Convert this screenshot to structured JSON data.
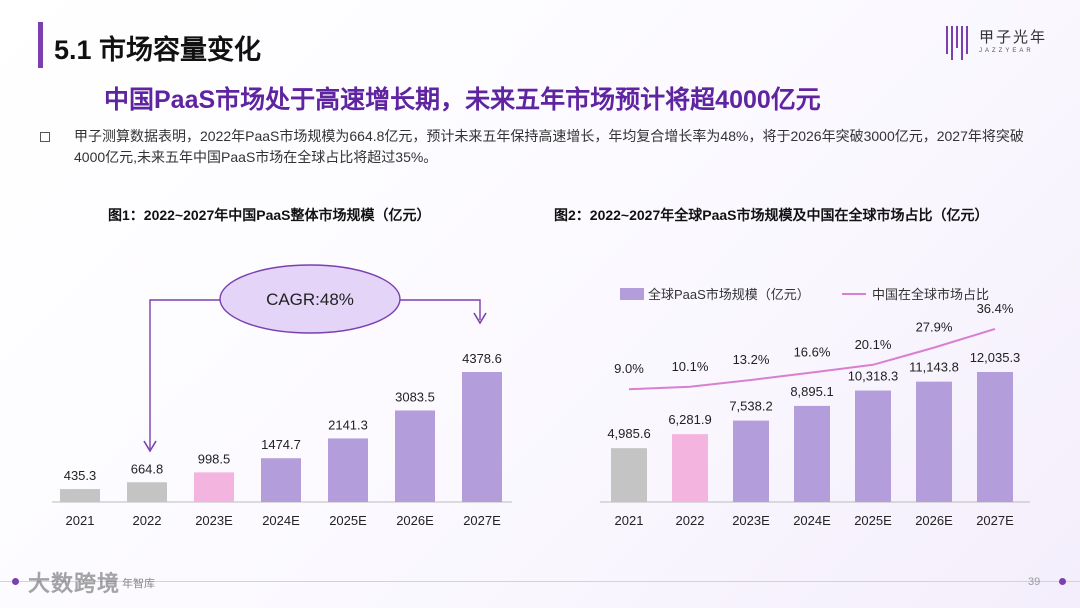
{
  "section": {
    "title": "5.1 市场容量变化"
  },
  "logo": {
    "cn": "甲子光年",
    "en": "JAZZYEAR"
  },
  "headline": "中国PaaS市场处于高速增长期，未来五年市场预计将超4000亿元",
  "bullet": "甲子测算数据表明，2022年PaaS市场规模为664.8亿元，预计未来五年保持高速增长，年均复合增长率为48%，将于2026年突破3000亿元，2027年将突破4000亿元,未来五年中国PaaS市场在全球占比将超过35%。",
  "footer": {
    "source": "年智库",
    "page": "39",
    "watermark": "大数跨境"
  },
  "colors": {
    "purple": "#b39ddb",
    "gray": "#c4c4c4",
    "pink": "#f4b4e0",
    "line": "#d97fd0",
    "accent": "#7b3fb0",
    "ellipse": "#e3d4f8"
  },
  "chart_data": [
    {
      "type": "bar",
      "title": "图1：2022~2027年中国PaaS整体市场规模（亿元）",
      "categories": [
        "2021",
        "2022",
        "2023E",
        "2024E",
        "2025E",
        "2026E",
        "2027E"
      ],
      "values": [
        435.3,
        664.8,
        998.5,
        1474.7,
        2141.3,
        3083.5,
        4378.6
      ],
      "value_labels": [
        "435.3",
        "664.8",
        "998.5",
        "1474.7",
        "2141.3",
        "3083.5",
        "4378.6"
      ],
      "bar_colors": [
        "gray",
        "gray",
        "pink",
        "purple",
        "purple",
        "purple",
        "purple"
      ],
      "annotation": "CAGR:48%",
      "ylim": [
        0,
        4800
      ],
      "xlabel": "",
      "ylabel": ""
    },
    {
      "type": "bar+line",
      "title": "图2：2022~2027年全球PaaS市场规模及中国在全球市场占比（亿元）",
      "categories": [
        "2021",
        "2022",
        "2023E",
        "2024E",
        "2025E",
        "2026E",
        "2027E"
      ],
      "series": [
        {
          "name": "全球PaaS市场规模（亿元）",
          "type": "bar",
          "values": [
            4985.6,
            6281.9,
            7538.2,
            8895.1,
            10318.3,
            11143.8,
            12035.3
          ],
          "labels": [
            "4,985.6",
            "6,281.9",
            "7,538.2",
            "8,895.1",
            "10,318.3",
            "11,143.8",
            "12,035.3"
          ],
          "bar_colors": [
            "gray",
            "pink",
            "purple",
            "purple",
            "purple",
            "purple",
            "purple"
          ]
        },
        {
          "name": "中国在全球市场占比",
          "type": "line",
          "values": [
            9.0,
            10.1,
            13.2,
            16.6,
            20.1,
            27.9,
            36.4
          ],
          "labels": [
            "9.0%",
            "10.1%",
            "13.2%",
            "16.6%",
            "20.1%",
            "27.9%",
            "36.4%"
          ]
        }
      ],
      "ylim": [
        0,
        20000
      ],
      "ylim_secondary": [
        0,
        40
      ],
      "legend": "top"
    }
  ]
}
